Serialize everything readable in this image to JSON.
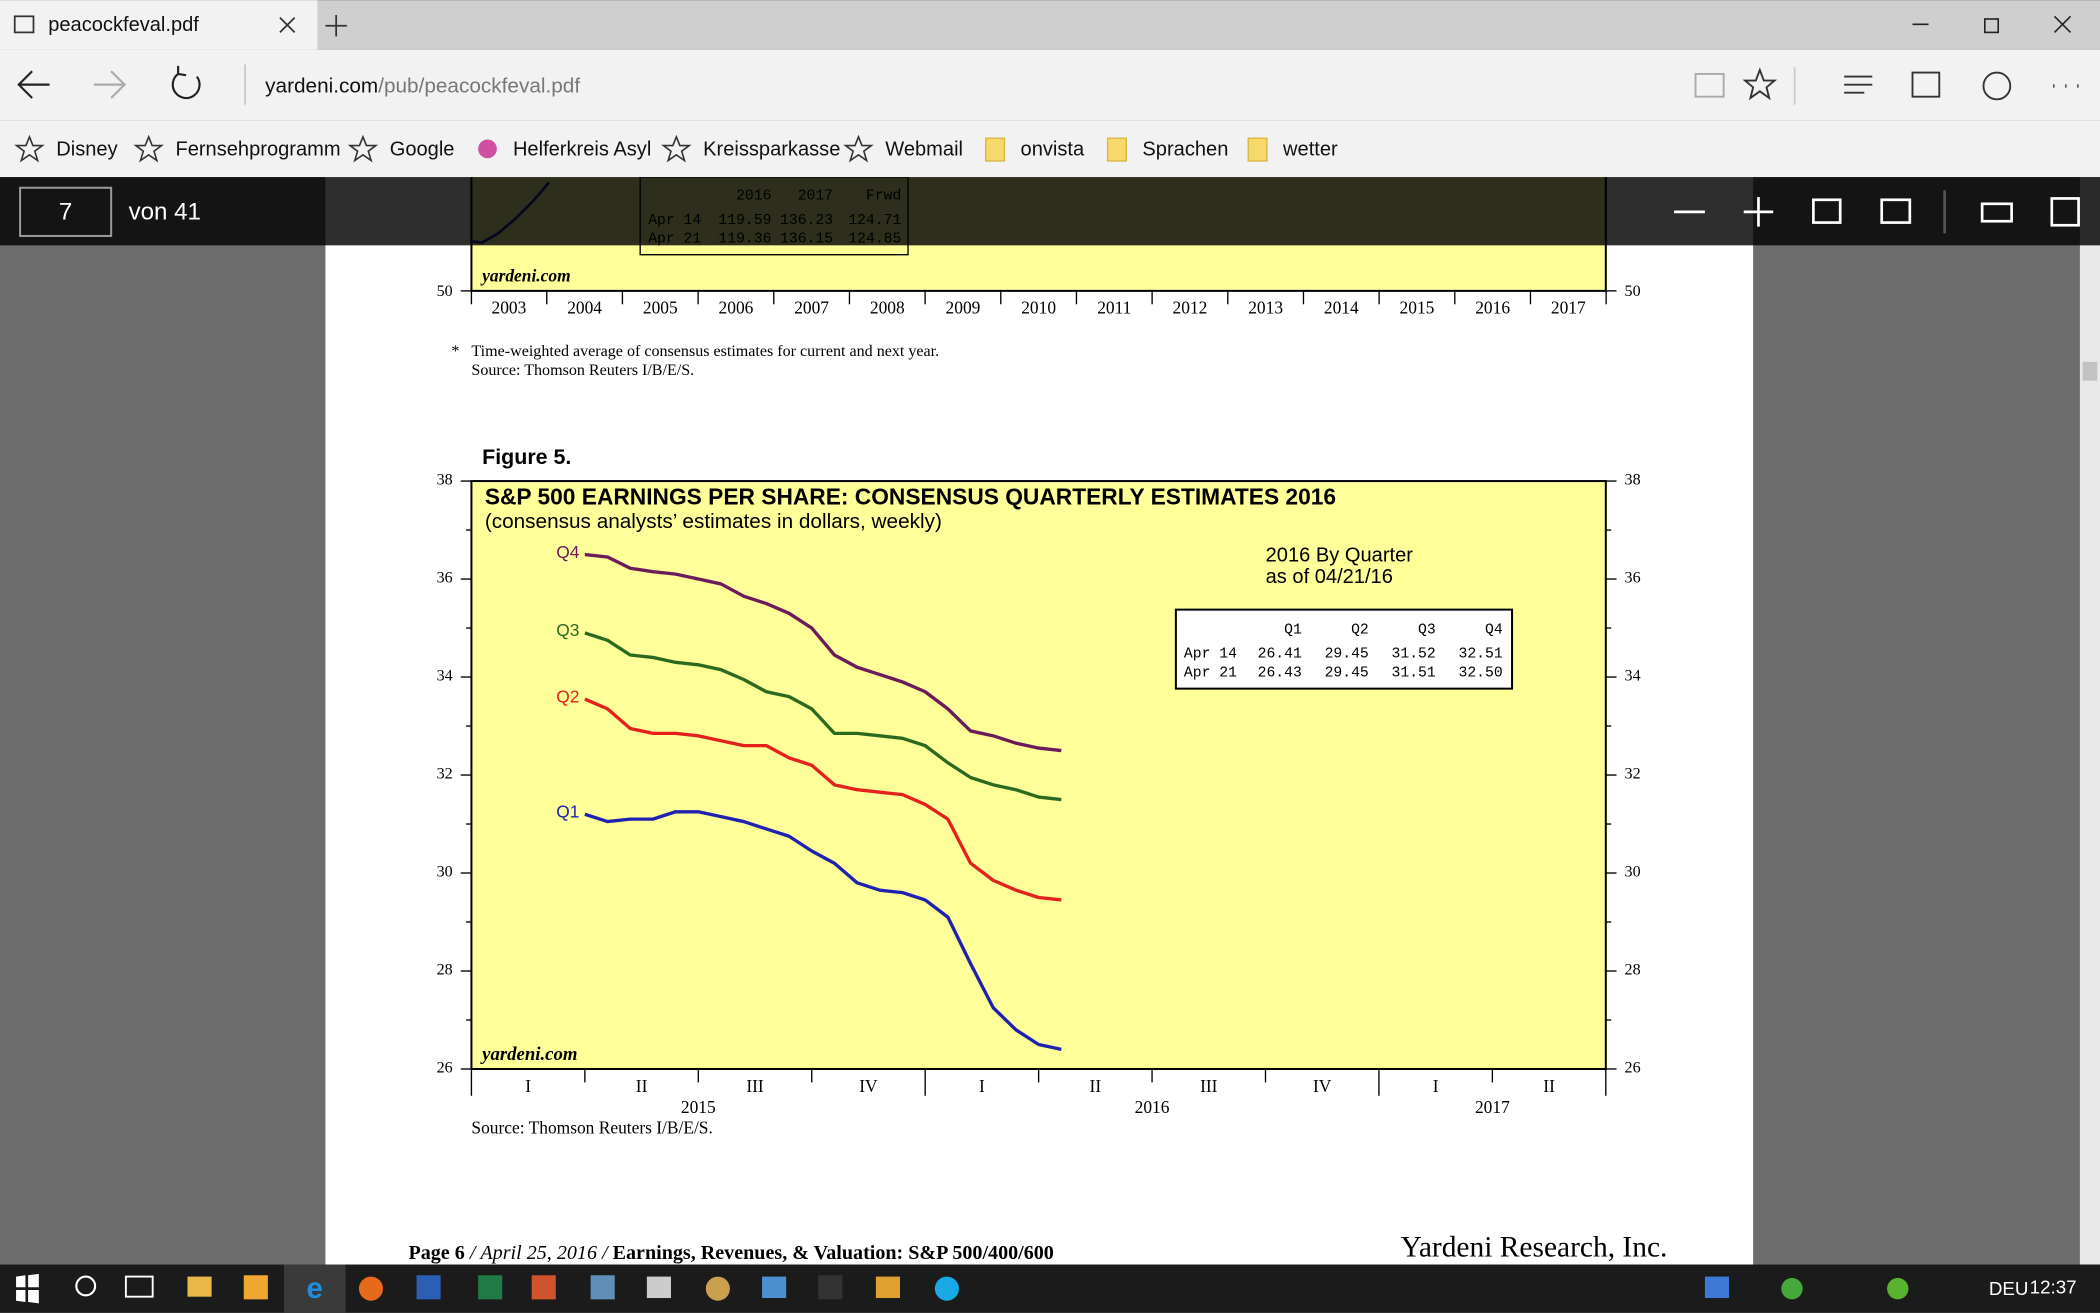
{
  "tab": {
    "title": "peacockfeval.pdf"
  },
  "address": {
    "domain": "yardeni.com",
    "path": "/pub/peacockfeval.pdf"
  },
  "bookmarks": [
    "Disney",
    "Fernsehprogramm",
    "Google",
    "Helferkreis Asyl",
    "Kreissparkasse",
    "Webmail",
    "onvista",
    "Sprachen",
    "wetter"
  ],
  "pdf_toolbar": {
    "page": "7",
    "of": "von 41"
  },
  "top_figure": {
    "table": {
      "header": [
        "2016",
        "2017",
        "Frwd"
      ],
      "rows": [
        [
          "Apr 14",
          "119.59",
          "136.23",
          "124.71"
        ],
        [
          "Apr 21",
          "119.36",
          "136.15",
          "124.85"
        ]
      ]
    },
    "watermark": "yardeni.com",
    "ytick": 50,
    "years": [
      2003,
      2004,
      2005,
      2006,
      2007,
      2008,
      2009,
      2010,
      2011,
      2012,
      2013,
      2014,
      2015,
      2016,
      2017
    ],
    "footnote_mark": "*",
    "footnote": [
      "Time-weighted average of consensus estimates for current and next year.",
      "Source: Thomson Reuters I/B/E/S."
    ]
  },
  "chart_data": {
    "type": "line",
    "figure_label": "Figure 5.",
    "title": "S&P 500 EARNINGS PER SHARE: CONSENSUS QUARTERLY ESTIMATES 2016",
    "subtitle": "(consensus analysts’ estimates in dollars, weekly)",
    "annotation": [
      "2016 By Quarter",
      "as of 04/21/16"
    ],
    "watermark": "yardeni.com",
    "source": "Source: Thomson Reuters I/B/E/S.",
    "categories": [
      "I",
      "II",
      "III",
      "IV",
      "I",
      "II",
      "III",
      "IV",
      "I",
      "II"
    ],
    "years": [
      "2015",
      "2016",
      "2017"
    ],
    "xlim": [
      0,
      10
    ],
    "x": [
      1.0,
      1.2,
      1.4,
      1.6,
      1.8,
      2.0,
      2.2,
      2.4,
      2.6,
      2.8,
      3.0,
      3.2,
      3.4,
      3.6,
      3.8,
      4.0,
      4.2,
      4.4,
      4.6,
      4.8,
      5.0,
      5.2
    ],
    "ylim": [
      26,
      38
    ],
    "yticks": [
      26,
      28,
      30,
      32,
      34,
      36,
      38
    ],
    "series": [
      {
        "name": "Q4",
        "color": "#6b1a5c",
        "values": [
          36.5,
          36.45,
          36.22,
          36.15,
          36.1,
          36.0,
          35.9,
          35.65,
          35.5,
          35.3,
          35.0,
          34.45,
          34.2,
          34.05,
          33.9,
          33.7,
          33.35,
          32.9,
          32.8,
          32.65,
          32.55,
          32.5
        ]
      },
      {
        "name": "Q3",
        "color": "#2b6a1e",
        "values": [
          34.9,
          34.75,
          34.45,
          34.4,
          34.3,
          34.25,
          34.15,
          33.95,
          33.7,
          33.6,
          33.35,
          32.85,
          32.85,
          32.8,
          32.75,
          32.6,
          32.25,
          31.95,
          31.8,
          31.7,
          31.55,
          31.5
        ]
      },
      {
        "name": "Q2",
        "color": "#e4211b",
        "values": [
          33.55,
          33.35,
          32.95,
          32.85,
          32.85,
          32.8,
          32.7,
          32.6,
          32.6,
          32.35,
          32.2,
          31.8,
          31.7,
          31.65,
          31.6,
          31.4,
          31.1,
          30.2,
          29.85,
          29.65,
          29.5,
          29.45
        ]
      },
      {
        "name": "Q1",
        "color": "#1f22b0",
        "values": [
          31.2,
          31.05,
          31.1,
          31.1,
          31.25,
          31.25,
          31.15,
          31.05,
          30.9,
          30.75,
          30.45,
          30.2,
          29.8,
          29.65,
          29.6,
          29.45,
          29.1,
          28.15,
          27.25,
          26.8,
          26.5,
          26.4
        ]
      }
    ],
    "table": {
      "header": [
        "Q1",
        "Q2",
        "Q3",
        "Q4"
      ],
      "rows": [
        [
          "Apr 14",
          "26.41",
          "29.45",
          "31.52",
          "32.51"
        ],
        [
          "Apr 21",
          "26.43",
          "29.45",
          "31.51",
          "32.50"
        ]
      ]
    }
  },
  "footer": {
    "parts": [
      "Page 6",
      " / ",
      "April 25, 2016",
      " / ",
      "Earnings, Revenues, & Valuation: S&P 500/400/600"
    ],
    "right": "Yardeni Research, Inc."
  },
  "taskbar": {
    "lang": "DEU",
    "time": "12:37"
  }
}
